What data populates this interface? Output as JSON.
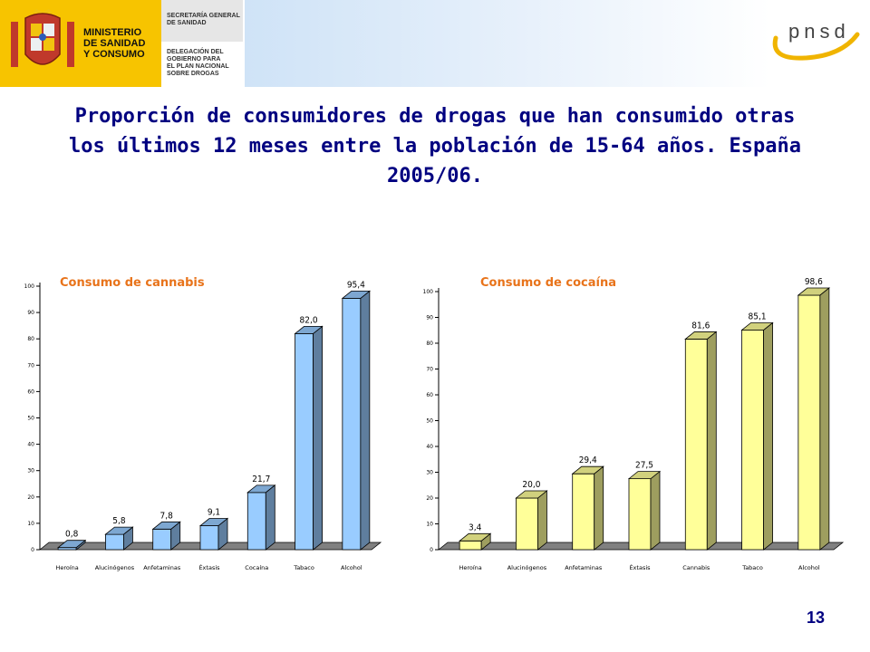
{
  "header": {
    "ministry_lines": [
      "MINISTERIO",
      "DE SANIDAD",
      "Y CONSUMO"
    ],
    "secretaria_lines": [
      "SECRETARÍA GENERAL",
      "DE SANIDAD"
    ],
    "delegacion_lines": [
      "DELEGACIÓN DEL",
      "GOBIERNO PARA",
      "EL PLAN NACIONAL",
      "SOBRE DROGAS"
    ],
    "logo_text": "pnsd",
    "crest_icon": "coat-of-arms-icon"
  },
  "slide": {
    "title": "Proporción de consumidores de drogas que han consumido otras los últimos 12 meses entre la población de 15-64 años. España 2005/06.",
    "page_number": "13"
  },
  "colors": {
    "title": "#000080",
    "chart_title": "#e8731a",
    "cannabis_bar": "#99ccff",
    "cocaina_bar": "#ffff99",
    "floor": "#808080"
  },
  "chart_data": [
    {
      "type": "bar",
      "title": "Consumo de cannabis",
      "categories": [
        "Heroína",
        "Alucinógenos",
        "Anfetaminas",
        "Éxtasis",
        "Cocaína",
        "Tabaco",
        "Alcohol"
      ],
      "values": [
        0.8,
        5.8,
        7.8,
        9.1,
        21.7,
        82.0,
        95.4
      ],
      "value_labels": [
        "0,8",
        "5,8",
        "7,8",
        "9,1",
        "21,7",
        "82,0",
        "95,4"
      ],
      "ylim": [
        0,
        100
      ],
      "yticks": [
        "0",
        "10",
        "20",
        "30",
        "40",
        "50",
        "60",
        "70",
        "80",
        "90",
        "100"
      ],
      "xlabel": "",
      "ylabel": "",
      "legend": "none",
      "grid": false
    },
    {
      "type": "bar",
      "title": "Consumo de cocaína",
      "categories": [
        "Heroína",
        "Alucinógenos",
        "Anfetaminas",
        "Éxtasis",
        "Cannabis",
        "Tabaco",
        "Alcohol"
      ],
      "values": [
        3.4,
        20.0,
        29.4,
        27.5,
        81.6,
        85.1,
        98.6
      ],
      "value_labels": [
        "3,4",
        "20,0",
        "29,4",
        "27,5",
        "81,6",
        "85,1",
        "98,6"
      ],
      "ylim": [
        0,
        100
      ],
      "yticks": [
        "0",
        "10",
        "20",
        "30",
        "40",
        "50",
        "60",
        "70",
        "80",
        "90",
        "100"
      ],
      "xlabel": "",
      "ylabel": "",
      "legend": "none",
      "grid": false
    }
  ]
}
